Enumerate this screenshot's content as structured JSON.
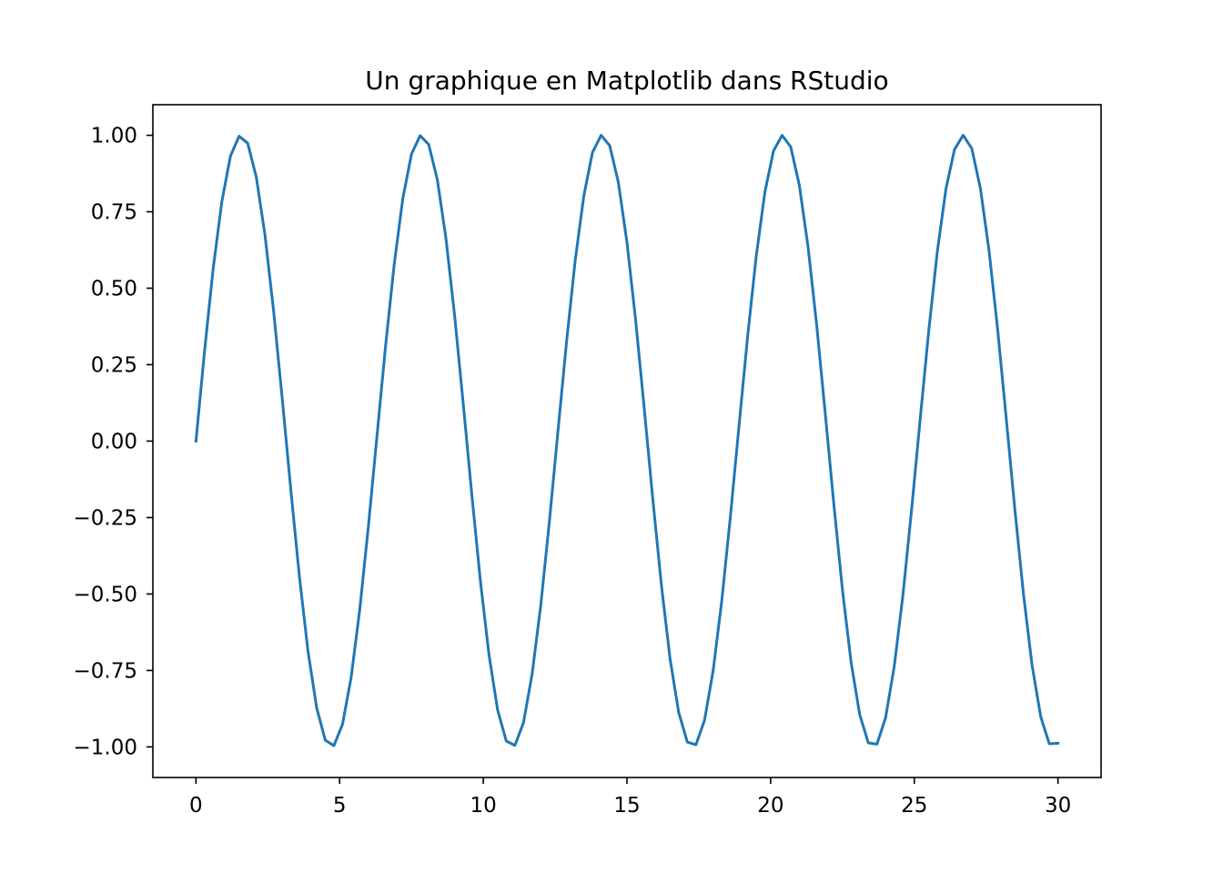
{
  "chart_data": {
    "type": "line",
    "title": "Un graphique en Matplotlib dans RStudio",
    "xlabel": "",
    "ylabel": "",
    "xlim": [
      -1.5,
      31.5
    ],
    "ylim": [
      -1.1,
      1.1
    ],
    "x_ticks": [
      0,
      5,
      10,
      15,
      20,
      25,
      30
    ],
    "x_tick_labels": [
      "0",
      "5",
      "10",
      "15",
      "20",
      "25",
      "30"
    ],
    "y_ticks": [
      1.0,
      0.75,
      0.5,
      0.25,
      0.0,
      -0.25,
      -0.5,
      -0.75,
      -1.0
    ],
    "y_tick_labels": [
      "1.00",
      "0.75",
      "0.50",
      "0.25",
      "0.00",
      "−0.25",
      "−0.50",
      "−0.75",
      "−1.00"
    ],
    "grid": false,
    "legend": "none",
    "series": [
      {
        "color": "#1f77b4",
        "x": [
          0.0,
          0.3,
          0.6,
          0.9,
          1.2,
          1.5,
          1.8,
          2.1,
          2.4,
          2.7,
          3.0,
          3.3,
          3.6,
          3.9,
          4.2,
          4.5,
          4.8,
          5.1,
          5.4,
          5.7,
          6.0,
          6.3,
          6.6,
          6.9,
          7.2,
          7.5,
          7.8,
          8.1,
          8.4,
          8.7,
          9.0,
          9.3,
          9.6,
          9.9,
          10.2,
          10.5,
          10.8,
          11.1,
          11.4,
          11.7,
          12.0,
          12.3,
          12.6,
          12.9,
          13.2,
          13.5,
          13.8,
          14.1,
          14.4,
          14.7,
          15.0,
          15.3,
          15.6,
          15.9,
          16.2,
          16.5,
          16.8,
          17.1,
          17.4,
          17.7,
          18.0,
          18.3,
          18.6,
          18.9,
          19.2,
          19.5,
          19.8,
          20.1,
          20.4,
          20.7,
          21.0,
          21.3,
          21.6,
          21.9,
          22.2,
          22.5,
          22.8,
          23.1,
          23.4,
          23.7,
          24.0,
          24.3,
          24.6,
          24.9,
          25.2,
          25.5,
          25.8,
          26.1,
          26.4,
          26.7,
          27.0,
          27.3,
          27.6,
          27.9,
          28.2,
          28.5,
          28.8,
          29.1,
          29.4,
          29.7,
          30.0
        ],
        "y": [
          0.0,
          0.296,
          0.565,
          0.783,
          0.932,
          0.997,
          0.974,
          0.863,
          0.675,
          0.427,
          0.141,
          -0.158,
          -0.443,
          -0.688,
          -0.872,
          -0.978,
          -0.996,
          -0.926,
          -0.773,
          -0.551,
          -0.279,
          0.017,
          0.312,
          0.579,
          0.794,
          0.938,
          0.999,
          0.97,
          0.855,
          0.663,
          0.412,
          0.124,
          -0.175,
          -0.458,
          -0.7,
          -0.88,
          -0.981,
          -0.995,
          -0.92,
          -0.761,
          -0.537,
          -0.263,
          0.034,
          0.327,
          0.592,
          0.803,
          0.944,
          1.0,
          0.966,
          0.846,
          0.65,
          0.397,
          0.108,
          -0.191,
          -0.472,
          -0.712,
          -0.887,
          -0.984,
          -0.993,
          -0.913,
          -0.75,
          -0.522,
          -0.246,
          0.05,
          0.343,
          0.606,
          0.814,
          0.949,
          1.0,
          0.962,
          0.836,
          0.637,
          0.382,
          0.091,
          -0.207,
          -0.487,
          -0.723,
          -0.894,
          -0.987,
          -0.991,
          -0.905,
          -0.738,
          -0.507,
          -0.23,
          0.067,
          0.358,
          0.619,
          0.824,
          0.954,
          1.0,
          0.957,
          0.827,
          0.624,
          0.366,
          0.074,
          -0.223,
          -0.501,
          -0.734,
          -0.901,
          -0.99,
          -0.988
        ]
      }
    ]
  }
}
